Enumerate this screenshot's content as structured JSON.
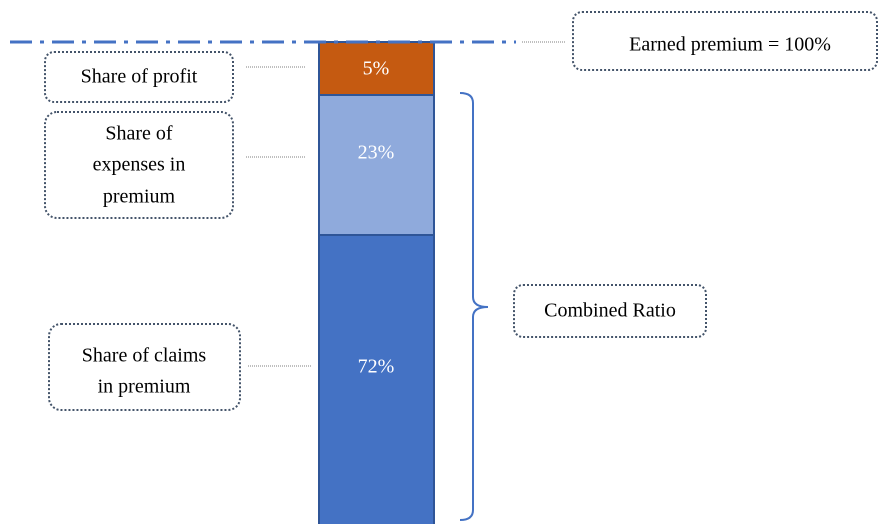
{
  "reference_line": {
    "label": "Earned premium = 100%"
  },
  "segments": [
    {
      "label": "5%",
      "color": "#C55A11"
    },
    {
      "label": "23%",
      "color": "#8FAADC"
    },
    {
      "label": "72%",
      "color": "#4472C4"
    }
  ],
  "callouts": [
    {
      "lines": [
        "Share of profit"
      ]
    },
    {
      "lines": [
        "Share of",
        "expenses in",
        "premium"
      ]
    },
    {
      "lines": [
        "Share of claims",
        "in premium"
      ]
    }
  ],
  "bracket": {
    "label": "Combined Ratio"
  }
}
